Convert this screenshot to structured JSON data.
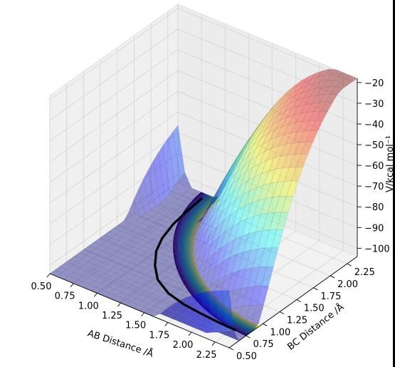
{
  "chart_data": {
    "type": "surface3d",
    "title": "",
    "xlabel": "AB Distance /Å",
    "ylabel": "BC Distance /Å",
    "zlabel": "V/kcal mol⁻¹",
    "xticks": [
      "0.50",
      "0.75",
      "1.00",
      "1.25",
      "1.50",
      "1.75",
      "2.00",
      "2.25"
    ],
    "yticks": [
      "0.50",
      "0.75",
      "1.00",
      "1.25",
      "1.50",
      "1.75",
      "2.00",
      "2.25"
    ],
    "zticks": [
      "-100",
      "-90",
      "-80",
      "-70",
      "-60",
      "-50",
      "-40",
      "-30",
      "-20"
    ],
    "xlim": [
      0.5,
      2.4
    ],
    "ylim": [
      0.5,
      2.4
    ],
    "zlim": [
      -104,
      -18
    ],
    "surface": {
      "description": "LEPS potential energy surface for A + BC -> AB + C",
      "colormap": "jet",
      "alpha": 0.4,
      "min_energy": -104,
      "asymptote_energy": -25
    },
    "contour_colormap": "viridis",
    "trajectory": {
      "color": "#000000",
      "points": [
        [
          2.3,
          0.74
        ],
        [
          2.1,
          0.75
        ],
        [
          1.9,
          0.77
        ],
        [
          1.7,
          0.8
        ],
        [
          1.5,
          0.86
        ],
        [
          1.3,
          0.98
        ],
        [
          1.15,
          1.15
        ],
        [
          1.02,
          1.35
        ],
        [
          0.94,
          1.55
        ],
        [
          0.88,
          1.8
        ],
        [
          0.85,
          2.05
        ],
        [
          0.83,
          2.3
        ]
      ]
    },
    "grid": true
  }
}
